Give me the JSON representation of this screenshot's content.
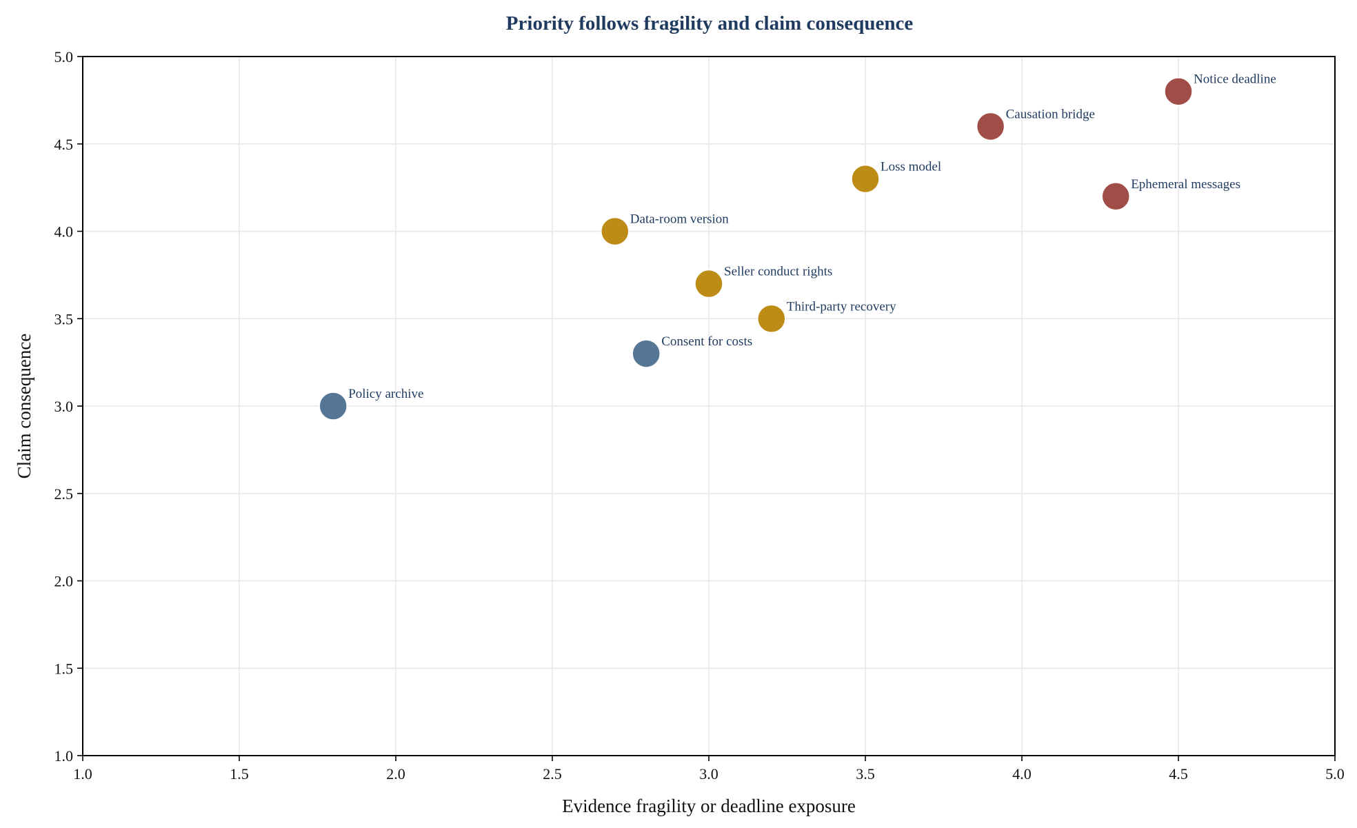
{
  "chart_data": {
    "type": "scatter",
    "title": "Priority follows fragility and claim consequence",
    "xlabel": "Evidence fragility or deadline exposure",
    "ylabel": "Claim consequence",
    "xlim": [
      1.0,
      5.0
    ],
    "ylim": [
      1.0,
      5.0
    ],
    "x_ticks": [
      "1.0",
      "1.5",
      "2.0",
      "2.5",
      "3.0",
      "3.5",
      "4.0",
      "4.5",
      "5.0"
    ],
    "y_ticks": [
      "1.0",
      "1.5",
      "2.0",
      "2.5",
      "3.0",
      "3.5",
      "4.0",
      "4.5",
      "5.0"
    ],
    "grid": true,
    "colors": {
      "high": "#9b433d",
      "medium": "#b8860b",
      "low": "#4d6f8f"
    },
    "points": [
      {
        "label": "Notice deadline",
        "x": 4.5,
        "y": 4.8,
        "group": "high"
      },
      {
        "label": "Causation bridge",
        "x": 3.9,
        "y": 4.6,
        "group": "high"
      },
      {
        "label": "Ephemeral messages",
        "x": 4.3,
        "y": 4.2,
        "group": "high"
      },
      {
        "label": "Loss model",
        "x": 3.5,
        "y": 4.3,
        "group": "medium"
      },
      {
        "label": "Data-room version",
        "x": 2.7,
        "y": 4.0,
        "group": "medium"
      },
      {
        "label": "Seller conduct rights",
        "x": 3.0,
        "y": 3.7,
        "group": "medium"
      },
      {
        "label": "Third-party recovery",
        "x": 3.2,
        "y": 3.5,
        "group": "medium"
      },
      {
        "label": "Consent for costs",
        "x": 2.8,
        "y": 3.3,
        "group": "low"
      },
      {
        "label": "Policy archive",
        "x": 1.8,
        "y": 3.0,
        "group": "low"
      }
    ]
  }
}
